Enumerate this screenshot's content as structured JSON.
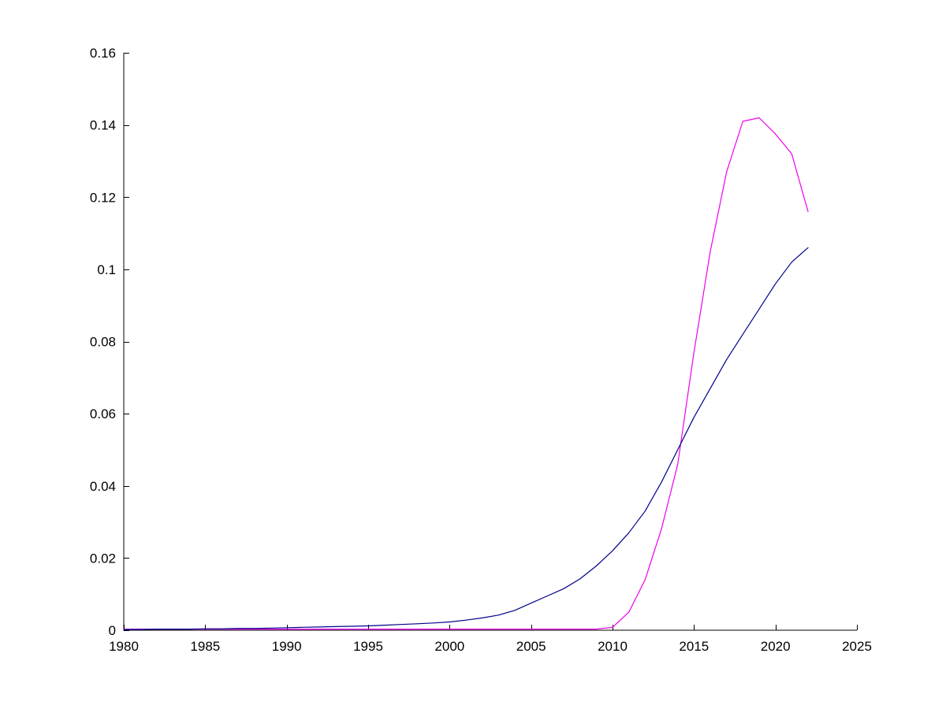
{
  "figure": {
    "background_color": "#ffffff",
    "axis_color": "#000000"
  },
  "chart_data": {
    "type": "line",
    "title": "",
    "xlabel": "",
    "ylabel": "",
    "grid": false,
    "legend": "none",
    "xlim": [
      1980,
      2025
    ],
    "ylim": [
      0,
      0.16
    ],
    "x_ticks": [
      1980,
      1985,
      1990,
      1995,
      2000,
      2005,
      2010,
      2015,
      2020,
      2025
    ],
    "x_tick_labels": [
      "1980",
      "1985",
      "1990",
      "1995",
      "2000",
      "2005",
      "2010",
      "2015",
      "2020",
      "2025"
    ],
    "y_ticks": [
      0,
      0.02,
      0.04,
      0.06,
      0.08,
      0.1,
      0.12,
      0.14,
      0.16
    ],
    "y_tick_labels": [
      "0",
      "0.02",
      "0.04",
      "0.06",
      "0.08",
      "0.1",
      "0.12",
      "0.14",
      "0.16"
    ],
    "x": [
      1980,
      1981,
      1982,
      1983,
      1984,
      1985,
      1986,
      1987,
      1988,
      1989,
      1990,
      1991,
      1992,
      1993,
      1994,
      1995,
      1996,
      1997,
      1998,
      1999,
      2000,
      2001,
      2002,
      2003,
      2004,
      2005,
      2006,
      2007,
      2008,
      2009,
      2010,
      2011,
      2012,
      2013,
      2014,
      2015,
      2016,
      2017,
      2018,
      2019,
      2020,
      2021,
      2022
    ],
    "series": [
      {
        "name": "magenta-series",
        "color": "#EE00EE",
        "values": [
          0.0003,
          0.0003,
          0.0003,
          0.0003,
          0.0003,
          0.0003,
          0.0003,
          0.0003,
          0.0003,
          0.0003,
          0.0003,
          0.0003,
          0.0003,
          0.0003,
          0.0003,
          0.0003,
          0.0003,
          0.0003,
          0.0003,
          0.0003,
          0.0003,
          0.0003,
          0.0003,
          0.0003,
          0.0003,
          0.0003,
          0.0003,
          0.0003,
          0.0003,
          0.0003,
          0.0008,
          0.005,
          0.014,
          0.028,
          0.046,
          0.077,
          0.105,
          0.127,
          0.141,
          0.142,
          0.1375,
          0.132,
          0.116
        ]
      },
      {
        "name": "blue-series",
        "color": "#00008B",
        "values": [
          0.0002,
          0.0002,
          0.0003,
          0.0003,
          0.0003,
          0.0004,
          0.0004,
          0.0005,
          0.0005,
          0.0006,
          0.0007,
          0.0008,
          0.0009,
          0.001,
          0.0011,
          0.0012,
          0.0014,
          0.0016,
          0.0018,
          0.002,
          0.0023,
          0.0028,
          0.0034,
          0.0042,
          0.0055,
          0.0075,
          0.0095,
          0.0115,
          0.0142,
          0.0178,
          0.022,
          0.027,
          0.033,
          0.041,
          0.05,
          0.059,
          0.067,
          0.075,
          0.082,
          0.089,
          0.096,
          0.102,
          0.106
        ]
      }
    ]
  }
}
